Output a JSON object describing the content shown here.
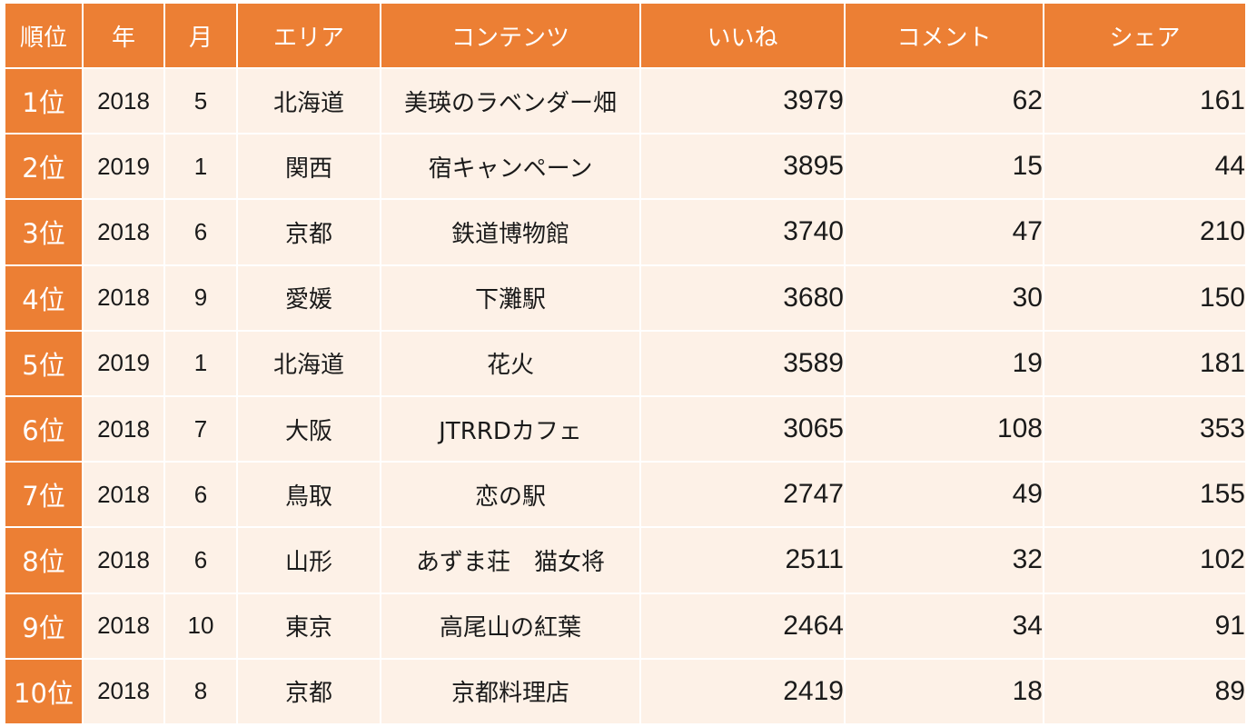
{
  "table": {
    "headers": [
      "順位",
      "年",
      "月",
      "エリア",
      "コンテンツ",
      "いいね",
      "コメント",
      "シェア"
    ],
    "rows": [
      {
        "rank": "1位",
        "year": "2018",
        "month": "5",
        "area": "北海道",
        "content": "美瑛のラベンダー畑",
        "likes": "3979",
        "comments": "62",
        "shares": "161"
      },
      {
        "rank": "2位",
        "year": "2019",
        "month": "1",
        "area": "関西",
        "content": "宿キャンペーン",
        "likes": "3895",
        "comments": "15",
        "shares": "44"
      },
      {
        "rank": "3位",
        "year": "2018",
        "month": "6",
        "area": "京都",
        "content": "鉄道博物館",
        "likes": "3740",
        "comments": "47",
        "shares": "210"
      },
      {
        "rank": "4位",
        "year": "2018",
        "month": "9",
        "area": "愛媛",
        "content": "下灘駅",
        "likes": "3680",
        "comments": "30",
        "shares": "150"
      },
      {
        "rank": "5位",
        "year": "2019",
        "month": "1",
        "area": "北海道",
        "content": "花火",
        "likes": "3589",
        "comments": "19",
        "shares": "181"
      },
      {
        "rank": "6位",
        "year": "2018",
        "month": "7",
        "area": "大阪",
        "content": "JTRRDカフェ",
        "likes": "3065",
        "comments": "108",
        "shares": "353"
      },
      {
        "rank": "7位",
        "year": "2018",
        "month": "6",
        "area": "鳥取",
        "content": "恋の駅",
        "likes": "2747",
        "comments": "49",
        "shares": "155"
      },
      {
        "rank": "8位",
        "year": "2018",
        "month": "6",
        "area": "山形",
        "content": "あずま荘　猫女将",
        "likes": "2511",
        "comments": "32",
        "shares": "102"
      },
      {
        "rank": "9位",
        "year": "2018",
        "month": "10",
        "area": "東京",
        "content": "高尾山の紅葉",
        "likes": "2464",
        "comments": "34",
        "shares": "91"
      },
      {
        "rank": "10位",
        "year": "2018",
        "month": "8",
        "area": "京都",
        "content": "京都料理店",
        "likes": "2419",
        "comments": "18",
        "shares": "89"
      }
    ]
  },
  "colors": {
    "header_bg": "#EC7F34",
    "header_text": "#FFFFFF",
    "cell_bg": "#FDF1E7",
    "cell_text": "#1A1A1A"
  }
}
